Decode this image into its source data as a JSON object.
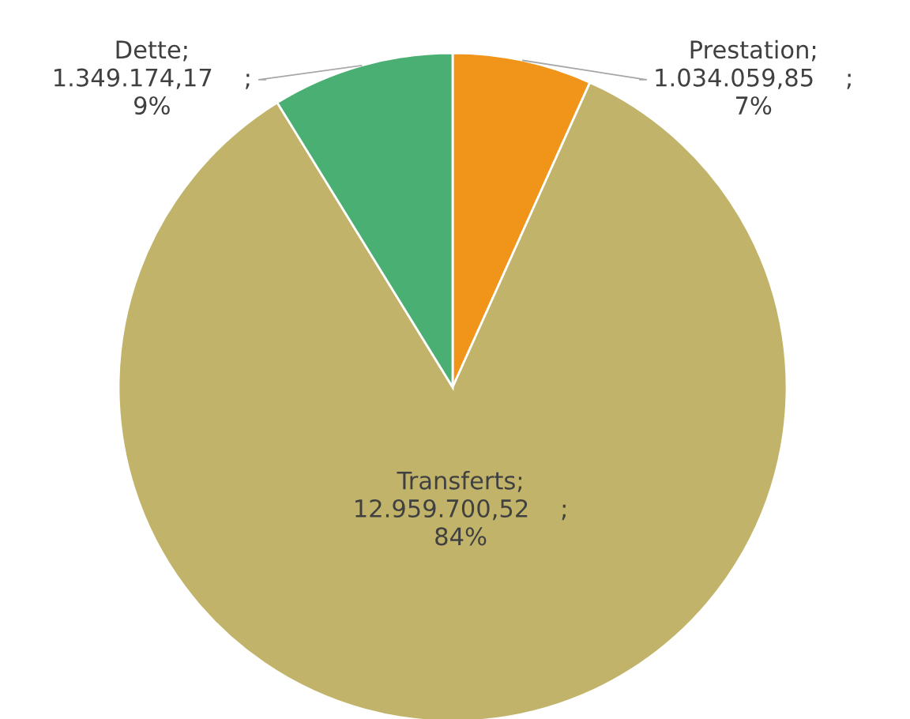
{
  "chart_data": {
    "type": "pie",
    "categories": [
      "Prestation",
      "Transferts",
      "Dette"
    ],
    "values": [
      1034059.85,
      12959700.52,
      1349174.17
    ],
    "colors": [
      "#f0951a",
      "#c1b46a",
      "#4aaf72"
    ],
    "value_labels": [
      ";\n1.034.059,85    ;\n7%",
      ";\n12.959.700,52    ;\n84%",
      ";\n1.349.174,17    ;\n9%"
    ],
    "legend": false
  }
}
